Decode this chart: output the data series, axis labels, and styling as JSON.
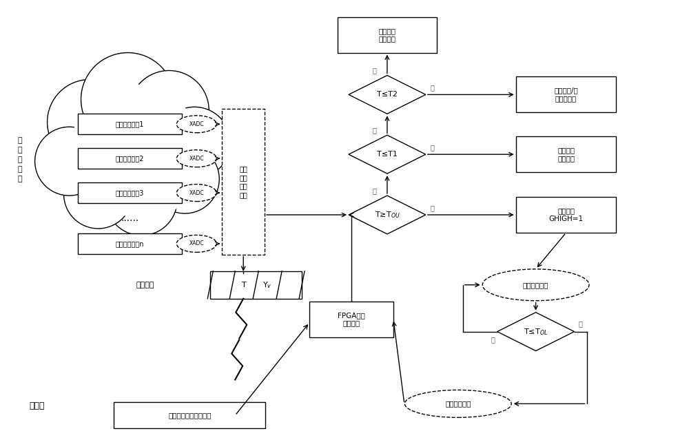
{
  "bg_color": "#ffffff",
  "fig_width": 10.0,
  "fig_height": 6.42,
  "cloud_circles": [
    [
      1.3,
      4.65,
      0.62
    ],
    [
      1.85,
      4.98,
      0.68
    ],
    [
      2.45,
      4.82,
      0.58
    ],
    [
      2.82,
      4.35,
      0.52
    ],
    [
      2.68,
      3.82,
      0.5
    ],
    [
      2.05,
      3.52,
      0.52
    ],
    [
      1.42,
      3.6,
      0.5
    ],
    [
      1.0,
      4.08,
      0.5
    ]
  ],
  "swarm_terminals": [
    "蜂群数据终端1",
    "蜂群数据终端2",
    "蜂群数据终端3",
    "蜂群数据终端n"
  ],
  "left_label": "无人机蜂群",
  "ground_label": "地面站",
  "downlink_label": "下行链路",
  "monitor_box_label": "实时\n监测\n芯片\n状态",
  "ground_station_label": "地面站上位机实时监控",
  "fpga_label": "FPGA重新\n上电工作",
  "top_box_label": "关闭发射\n正常接收",
  "box_labels": [
    "降低遥测/图\n像速率工作",
    "预定状态\n正常工作",
    "关机序列\nGHIGH=1"
  ],
  "ellipse_labels": [
    "高温保护状态",
    "启动重配状态"
  ],
  "diamond_T2": "T≤T2",
  "diamond_T1": "T≤T1",
  "diamond_TOU": "T≥T",
  "diamond_TOL": "T≤T",
  "yes_label": "是",
  "no_label": "否"
}
